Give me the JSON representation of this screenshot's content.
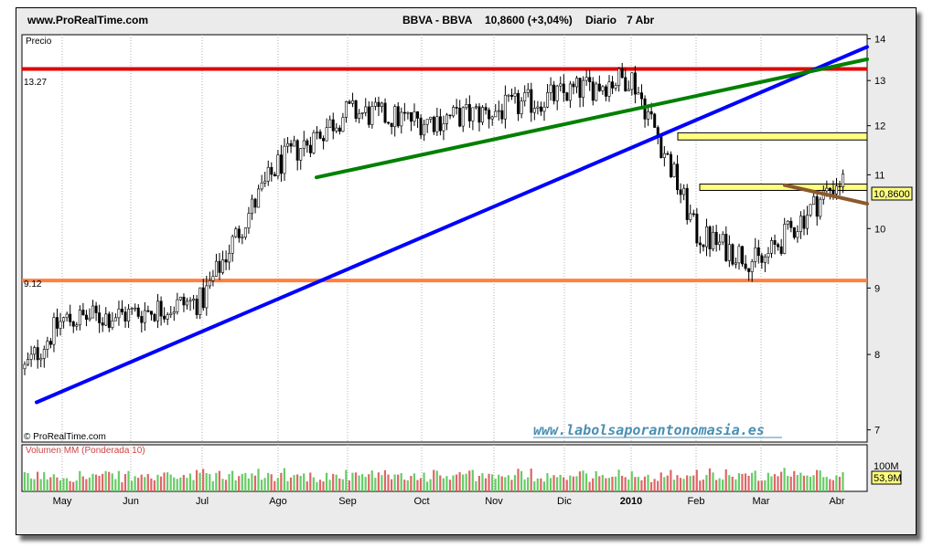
{
  "header": {
    "site": "www.ProRealTime.com",
    "symbol": "BBVA - BBVA",
    "last": "10,8600 (+3,04%)",
    "period": "Diario",
    "date": "7 Abr"
  },
  "price_panel": {
    "title": "Precio",
    "watermark_small": "© ProRealTime.com",
    "watermark_site": "www.labolsaporantonomasia.es",
    "level_high_label": "13.27",
    "level_low_label": "9.12",
    "current_price_badge": "10,8600"
  },
  "volume_panel": {
    "title": "Volumen MM (Ponderada 10)",
    "scale_label": "100M",
    "current_volume_badge": "53,9M"
  },
  "colors": {
    "frame_bg": "#ebebeb",
    "candle_up": "#ffffff",
    "candle_down": "#000000",
    "resistance": "#e00000",
    "support": "#ff8040",
    "trend_long": "#0000ff",
    "trend_mid": "#008000",
    "trend_short": "#8b5a2b",
    "zone": "#ffff80",
    "vol_up": "#66cc66",
    "vol_down": "#dd6666"
  },
  "chart_data": [
    {
      "type": "candlestick",
      "title": "BBVA - BBVA",
      "x_labels": [
        "May",
        "Jun",
        "Jul",
        "Ago",
        "Sep",
        "Oct",
        "Nov",
        "Dic",
        "2010",
        "Feb",
        "Mar",
        "Abr"
      ],
      "y_ticks": [
        7,
        8,
        9,
        10,
        11,
        12,
        13,
        14
      ],
      "ylim": [
        6.85,
        14.1
      ],
      "y_scale": "log",
      "grid": "vertical dotted at month starts",
      "close_path_approx": [
        {
          "x": "May",
          "y": 8.5
        },
        {
          "x": "Jun",
          "y": 8.6
        },
        {
          "x": "Jul",
          "y": 8.8
        },
        {
          "x": "Ago",
          "y": 11.2
        },
        {
          "x": "Sep",
          "y": 12.3
        },
        {
          "x": "Oct",
          "y": 12.1
        },
        {
          "x": "Nov",
          "y": 12.3
        },
        {
          "x": "Dic",
          "y": 12.7
        },
        {
          "x": "2010",
          "y": 13.1
        },
        {
          "x": "Feb",
          "y": 9.9
        },
        {
          "x": "Mar",
          "y": 9.4
        },
        {
          "x": "Abr",
          "y": 10.86
        }
      ],
      "horizontal_levels": [
        {
          "label": "13.27",
          "y": 13.27,
          "color": "#e00000"
        },
        {
          "label": "9.12",
          "y": 9.12,
          "color": "#ff8040"
        }
      ],
      "trendlines": [
        {
          "color": "#0000ff",
          "from": {
            "x": "Apr",
            "y": 7.35
          },
          "to": {
            "x": "Abr",
            "y": 13.8
          }
        },
        {
          "color": "#008000",
          "from": {
            "x": "Ago",
            "y": 10.95
          },
          "to": {
            "x": "Abr",
            "y": 13.5
          }
        },
        {
          "color": "#8b5a2b",
          "from": {
            "x": "Mar",
            "y": 10.8
          },
          "to": {
            "x": "Abr",
            "y": 10.45
          }
        }
      ],
      "zones": [
        {
          "y_low": 11.7,
          "y_high": 11.85
        },
        {
          "y_low": 10.7,
          "y_high": 10.82
        }
      ],
      "last_value": 10.86
    },
    {
      "type": "bar",
      "title": "Volumen MM (Ponderada 10)",
      "x_labels": [
        "May",
        "Jun",
        "Jul",
        "Ago",
        "Sep",
        "Oct",
        "Nov",
        "Dic",
        "2010",
        "Feb",
        "Mar",
        "Abr"
      ],
      "y_ticks": [
        "100M"
      ],
      "ylim": [
        0,
        140
      ],
      "unit": "M",
      "last_value": 53.9,
      "moving_average_period": 10
    }
  ]
}
